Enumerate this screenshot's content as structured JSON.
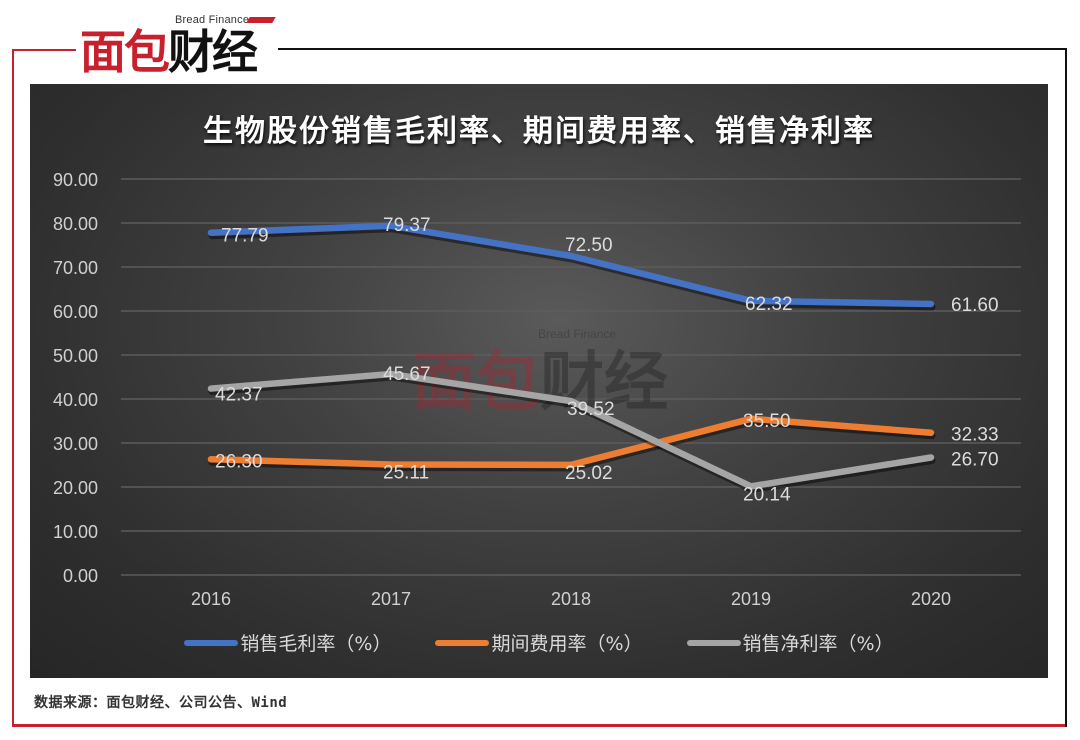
{
  "brand": {
    "name_cn": "面包财经",
    "name_cn_red": "面包",
    "name_cn_black": "财经",
    "name_en": "Bread Finance",
    "color_red": "#c8202c"
  },
  "watermark": {
    "name_cn_red": "面包",
    "name_cn_black": "财经",
    "name_en": "Bread Finance"
  },
  "source_note": "数据来源：面包财经、公司公告、Wind",
  "chart_data": {
    "type": "line",
    "title": "生物股份销售毛利率、期间费用率、销售净利率",
    "xlabel": "",
    "ylabel": "",
    "categories": [
      "2016",
      "2017",
      "2018",
      "2019",
      "2020"
    ],
    "ylim": [
      0,
      90
    ],
    "yticks": [
      "0.00",
      "10.00",
      "20.00",
      "30.00",
      "40.00",
      "50.00",
      "60.00",
      "70.00",
      "80.00",
      "90.00"
    ],
    "grid": true,
    "legend_position": "bottom",
    "series": [
      {
        "name": "销售毛利率（%）",
        "color": "#4472c4",
        "values": [
          77.79,
          79.37,
          72.5,
          62.32,
          61.6
        ],
        "labels": [
          "77.79",
          "79.37",
          "72.50",
          "62.32",
          "61.60"
        ]
      },
      {
        "name": "期间费用率（%）",
        "color": "#ed7d31",
        "values": [
          26.3,
          25.11,
          25.02,
          35.5,
          32.33
        ],
        "labels": [
          "26.30",
          "25.11",
          "25.02",
          "35.50",
          "32.33"
        ]
      },
      {
        "name": "销售净利率（%）",
        "color": "#a5a5a5",
        "values": [
          42.37,
          45.67,
          39.52,
          20.14,
          26.7
        ],
        "labels": [
          "42.37",
          "45.67",
          "39.52",
          "20.14",
          "26.70"
        ]
      }
    ]
  }
}
